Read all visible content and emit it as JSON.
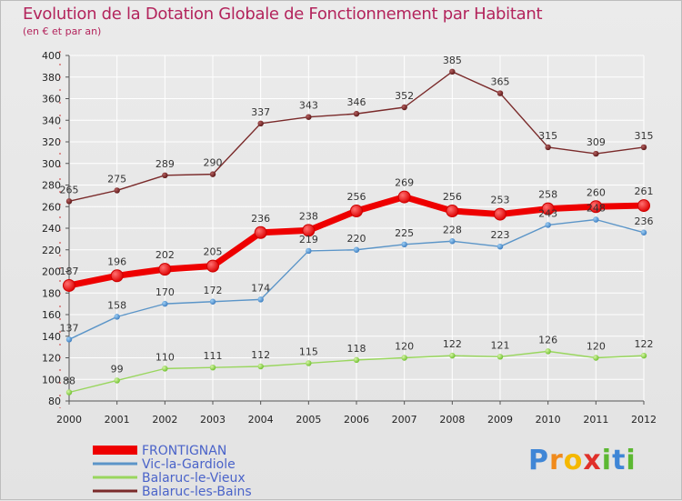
{
  "title": "Evolution de la Dotation Globale de Fonctionnement par Habitant",
  "subtitle": "(en € et par an)",
  "logo": {
    "letters": [
      "P",
      "r",
      "o",
      "x",
      "i",
      "t",
      "i"
    ]
  },
  "colors": {
    "title": "#b3245c",
    "frontignan": "#ee0000",
    "vic": "#5b95c8",
    "balaruc_vieux": "#99d65e",
    "balaruc_bains": "#7a2a2a",
    "axis": "#000000",
    "grid": "#ffffff",
    "legend_text": "#4a63c9"
  },
  "chart_data": {
    "type": "line",
    "title": "Evolution de la Dotation Globale de Fonctionnement par Habitant",
    "subtitle": "(en € et par an)",
    "xlabel": "",
    "ylabel": "",
    "ylim": [
      80,
      400
    ],
    "ytick_step": 20,
    "grid": true,
    "legend_position": "bottom-left",
    "x": [
      "2000",
      "2001",
      "2002",
      "2003",
      "2004",
      "2005",
      "2006",
      "2007",
      "2008",
      "2009",
      "2010",
      "2011",
      "2012"
    ],
    "yticks": [
      "80",
      "100",
      "120",
      "140",
      "160",
      "180",
      "200",
      "220",
      "240",
      "260",
      "280",
      "300",
      "320",
      "340",
      "360",
      "380",
      "400"
    ],
    "series": [
      {
        "key": "frontignan",
        "name": "FRONTIGNAN",
        "values": [
          187,
          196,
          202,
          205,
          236,
          238,
          256,
          269,
          256,
          253,
          258,
          260,
          261
        ]
      },
      {
        "key": "vic",
        "name": "Vic-la-Gardiole",
        "values": [
          137,
          158,
          170,
          172,
          174,
          219,
          220,
          225,
          228,
          223,
          243,
          248,
          236
        ]
      },
      {
        "key": "balaruc_vieux",
        "name": "Balaruc-le-Vieux",
        "values": [
          88,
          99,
          110,
          111,
          112,
          115,
          118,
          120,
          122,
          121,
          126,
          120,
          122
        ]
      },
      {
        "key": "balaruc_bains",
        "name": "Balaruc-les-Bains",
        "values": [
          265,
          275,
          289,
          290,
          337,
          343,
          346,
          352,
          385,
          365,
          315,
          309,
          315
        ]
      }
    ]
  }
}
